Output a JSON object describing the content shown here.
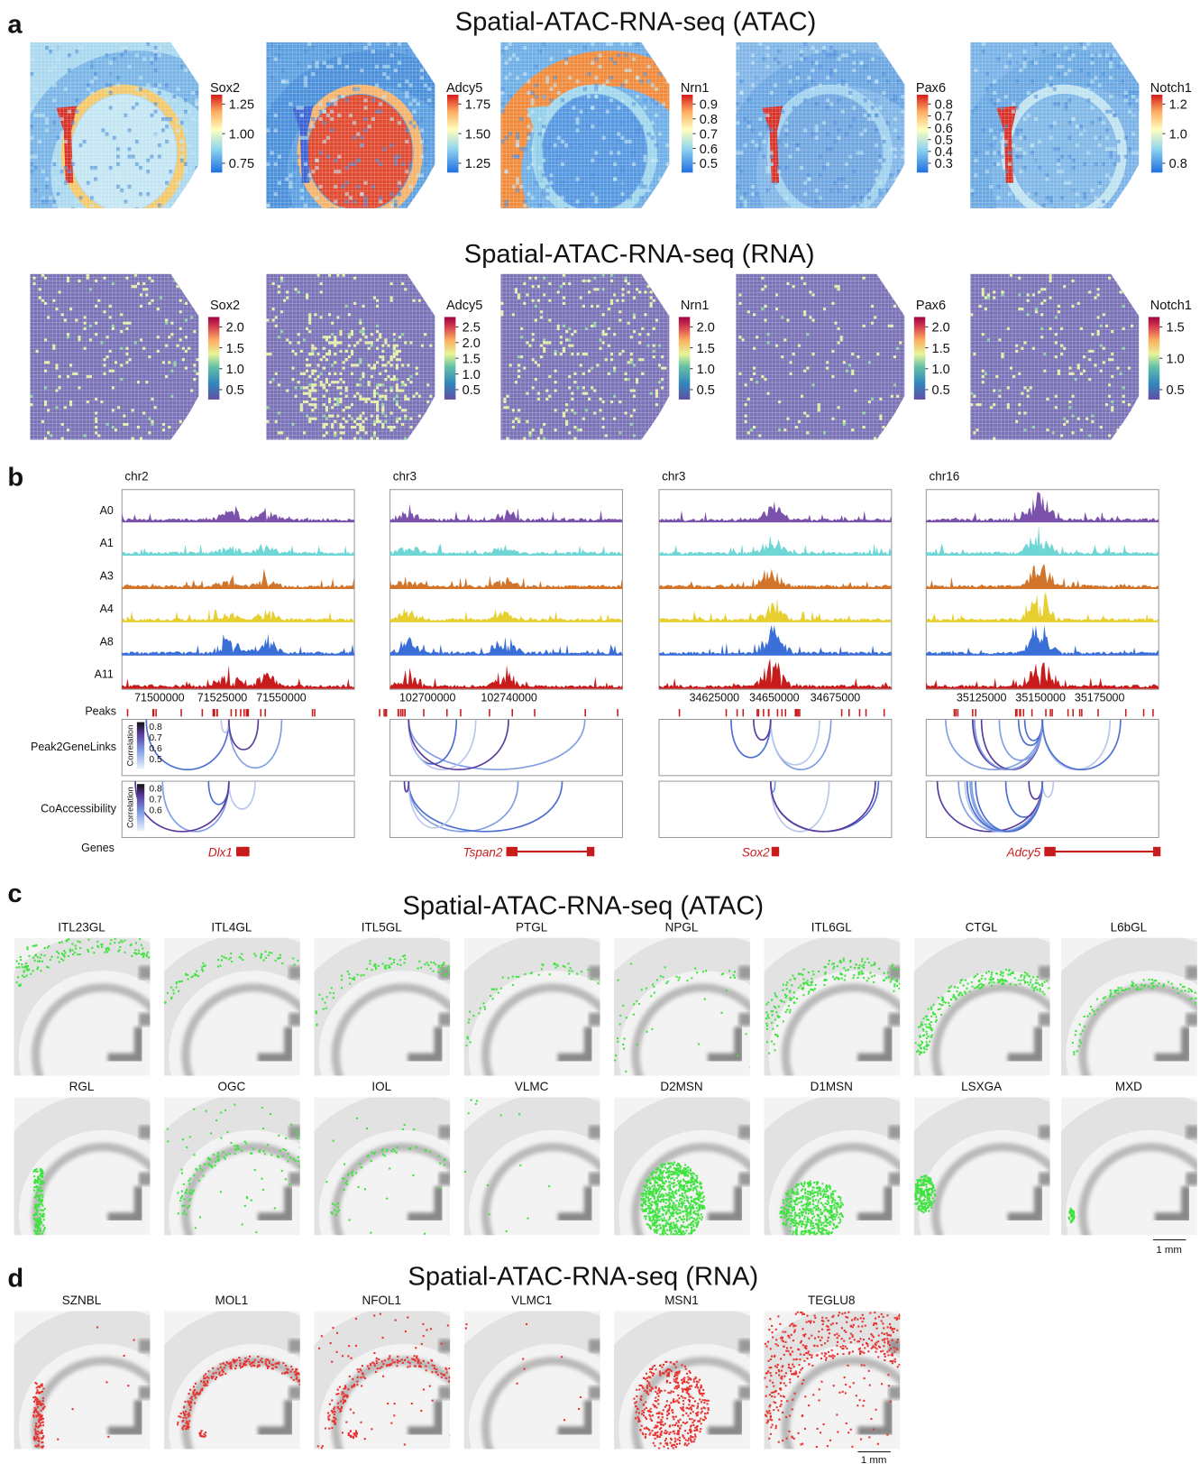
{
  "panel_labels": [
    "a",
    "b",
    "c",
    "d"
  ],
  "a": {
    "atac_title": "Spatial-ATAC-RNA-seq (ATAC)",
    "atac_maps": [
      {
        "gene": "Sox2",
        "ticks": [
          "1.25",
          "1.00",
          "0.75"
        ]
      },
      {
        "gene": "Adcy5",
        "ticks": [
          "1.75",
          "1.50",
          "1.25"
        ]
      },
      {
        "gene": "Nrn1",
        "ticks": [
          "0.9",
          "0.8",
          "0.7",
          "0.6",
          "0.5"
        ]
      },
      {
        "gene": "Pax6",
        "ticks": [
          "0.8",
          "0.7",
          "0.6",
          "0.5",
          "0.4",
          "0.3"
        ]
      },
      {
        "gene": "Notch1",
        "ticks": [
          "1.2",
          "1.0",
          "0.8"
        ]
      }
    ],
    "rna_title": "Spatial-ATAC-RNA-seq (RNA)",
    "rna_maps": [
      {
        "gene": "Sox2",
        "ticks": [
          "2.0",
          "1.5",
          "1.0",
          "0.5"
        ]
      },
      {
        "gene": "Adcy5",
        "ticks": [
          "2.5",
          "2.0",
          "1.5",
          "1.0",
          "0.5"
        ]
      },
      {
        "gene": "Nrn1",
        "ticks": [
          "2.0",
          "1.5",
          "1.0",
          "0.5"
        ]
      },
      {
        "gene": "Pax6",
        "ticks": [
          "2.0",
          "1.5",
          "1.0",
          "0.5"
        ]
      },
      {
        "gene": "Notch1",
        "ticks": [
          "1.5",
          "1.0",
          "0.5"
        ]
      }
    ]
  },
  "b": {
    "loci": [
      {
        "chr": "chr2",
        "ticks": [
          "71500000",
          "71525000",
          "71550000"
        ],
        "gene": "Dlx1"
      },
      {
        "chr": "chr3",
        "ticks": [
          "102700000",
          "102740000"
        ],
        "gene": "Tspan2"
      },
      {
        "chr": "chr3",
        "ticks": [
          "34625000",
          "34650000",
          "34675000"
        ],
        "gene": "Sox2"
      },
      {
        "chr": "chr16",
        "ticks": [
          "35125000",
          "35150000",
          "35175000"
        ],
        "gene": "Adcy5"
      }
    ],
    "tracks": [
      "A0",
      "A1",
      "A3",
      "A4",
      "A8",
      "A11"
    ],
    "row_labels": [
      "Peaks",
      "Peak2GeneLinks",
      "CoAccessibility",
      "Genes"
    ],
    "p2g_ticks": [
      "0.8",
      "0.7",
      "0.6",
      "0.5"
    ],
    "coacc_ticks": [
      "0.8",
      "0.7",
      "0.6"
    ],
    "colorbar_label": "Correlation"
  },
  "c": {
    "title": "Spatial-ATAC-RNA-seq (ATAC)",
    "cell_types": [
      "ITL23GL",
      "ITL4GL",
      "ITL5GL",
      "PTGL",
      "NPGL",
      "ITL6GL",
      "CTGL",
      "L6bGL",
      "RGL",
      "OGC",
      "IOL",
      "VLMC",
      "D2MSN",
      "D1MSN",
      "LSXGA",
      "MXD"
    ],
    "scale": "1 mm"
  },
  "d": {
    "title": "Spatial-ATAC-RNA-seq (RNA)",
    "cell_types": [
      "SZNBL",
      "MOL1",
      "NFOL1",
      "VLMC1",
      "MSN1",
      "TEGLU8"
    ],
    "scale": "1 mm"
  }
}
